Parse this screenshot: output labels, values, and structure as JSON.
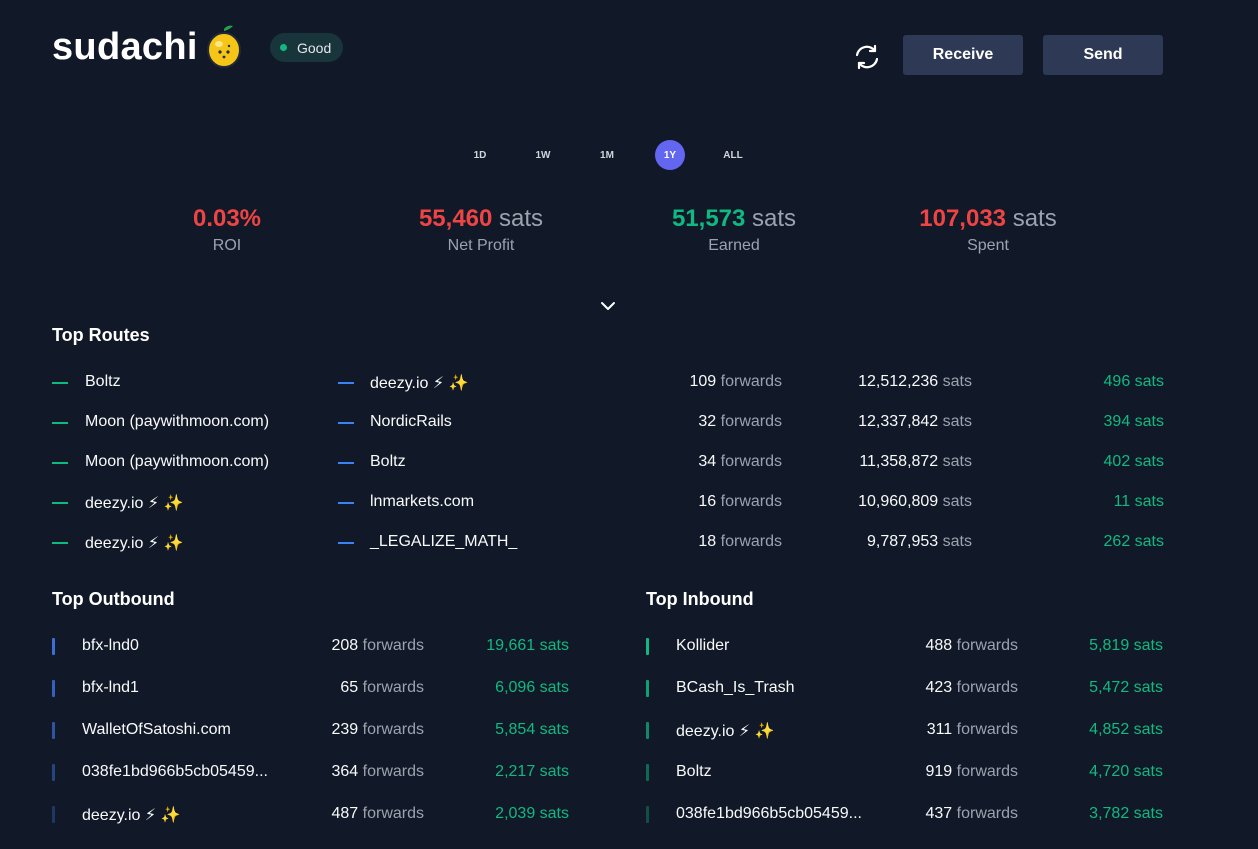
{
  "header": {
    "brand": "sudachi",
    "status": "Good",
    "receive_label": "Receive",
    "send_label": "Send"
  },
  "ranges": [
    {
      "label": "1D",
      "active": false
    },
    {
      "label": "1W",
      "active": false
    },
    {
      "label": "1M",
      "active": false
    },
    {
      "label": "1Y",
      "active": true
    },
    {
      "label": "ALL",
      "active": false
    }
  ],
  "stats": [
    {
      "value": "0.03%",
      "unit": "",
      "label": "ROI",
      "color": "#ef4444"
    },
    {
      "value": "55,460",
      "unit": "sats",
      "label": "Net Profit",
      "color": "#ef4444"
    },
    {
      "value": "51,573",
      "unit": "sats",
      "label": "Earned",
      "color": "#10b981"
    },
    {
      "value": "107,033",
      "unit": "sats",
      "label": "Spent",
      "color": "#ef4444"
    }
  ],
  "top_routes": {
    "title": "Top Routes",
    "forwards_word": "forwards",
    "sats_word": "sats",
    "rows": [
      {
        "from": "Boltz",
        "to": "deezy.io ⚡ ✨",
        "forwards": "109",
        "amount": "12,512,236",
        "fee": "496 sats"
      },
      {
        "from": "Moon (paywithmoon.com)",
        "to": "NordicRails",
        "forwards": "32",
        "amount": "12,337,842",
        "fee": "394 sats"
      },
      {
        "from": "Moon (paywithmoon.com)",
        "to": "Boltz",
        "forwards": "34",
        "amount": "11,358,872",
        "fee": "402 sats"
      },
      {
        "from": "deezy.io ⚡ ✨",
        "to": "lnmarkets.com",
        "forwards": "16",
        "amount": "10,960,809",
        "fee": "11 sats"
      },
      {
        "from": "deezy.io ⚡ ✨",
        "to": "_LEGALIZE_MATH_",
        "forwards": "18",
        "amount": "9,787,953",
        "fee": "262 sats"
      }
    ]
  },
  "top_outbound": {
    "title": "Top Outbound",
    "forwards_word": "forwards",
    "bar_color": "#3b6fd6",
    "rows": [
      {
        "name": "bfx-lnd0",
        "forwards": "208",
        "fee": "19,661 sats",
        "bar_opacity": 1.0
      },
      {
        "name": "bfx-lnd1",
        "forwards": "65",
        "fee": "6,096 sats",
        "bar_opacity": 0.85
      },
      {
        "name": "WalletOfSatoshi.com",
        "forwards": "239",
        "fee": "5,854 sats",
        "bar_opacity": 0.7
      },
      {
        "name": "038fe1bd966b5cb05459...",
        "forwards": "364",
        "fee": "2,217 sats",
        "bar_opacity": 0.5
      },
      {
        "name": "deezy.io ⚡ ✨",
        "forwards": "487",
        "fee": "2,039 sats",
        "bar_opacity": 0.35
      }
    ]
  },
  "top_inbound": {
    "title": "Top Inbound",
    "forwards_word": "forwards",
    "bar_color": "#10b981",
    "rows": [
      {
        "name": "Kollider",
        "forwards": "488",
        "fee": "5,819 sats",
        "bar_opacity": 1.0
      },
      {
        "name": "BCash_Is_Trash",
        "forwards": "423",
        "fee": "5,472 sats",
        "bar_opacity": 0.85
      },
      {
        "name": "deezy.io ⚡ ✨",
        "forwards": "311",
        "fee": "4,852 sats",
        "bar_opacity": 0.7
      },
      {
        "name": "Boltz",
        "forwards": "919",
        "fee": "4,720 sats",
        "bar_opacity": 0.5
      },
      {
        "name": "038fe1bd966b5cb05459...",
        "forwards": "437",
        "fee": "3,782 sats",
        "bar_opacity": 0.35
      }
    ]
  },
  "icons": {
    "lemon": "lemon-icon",
    "refresh": "refresh-icon",
    "expand": "chevron-down-icon"
  }
}
